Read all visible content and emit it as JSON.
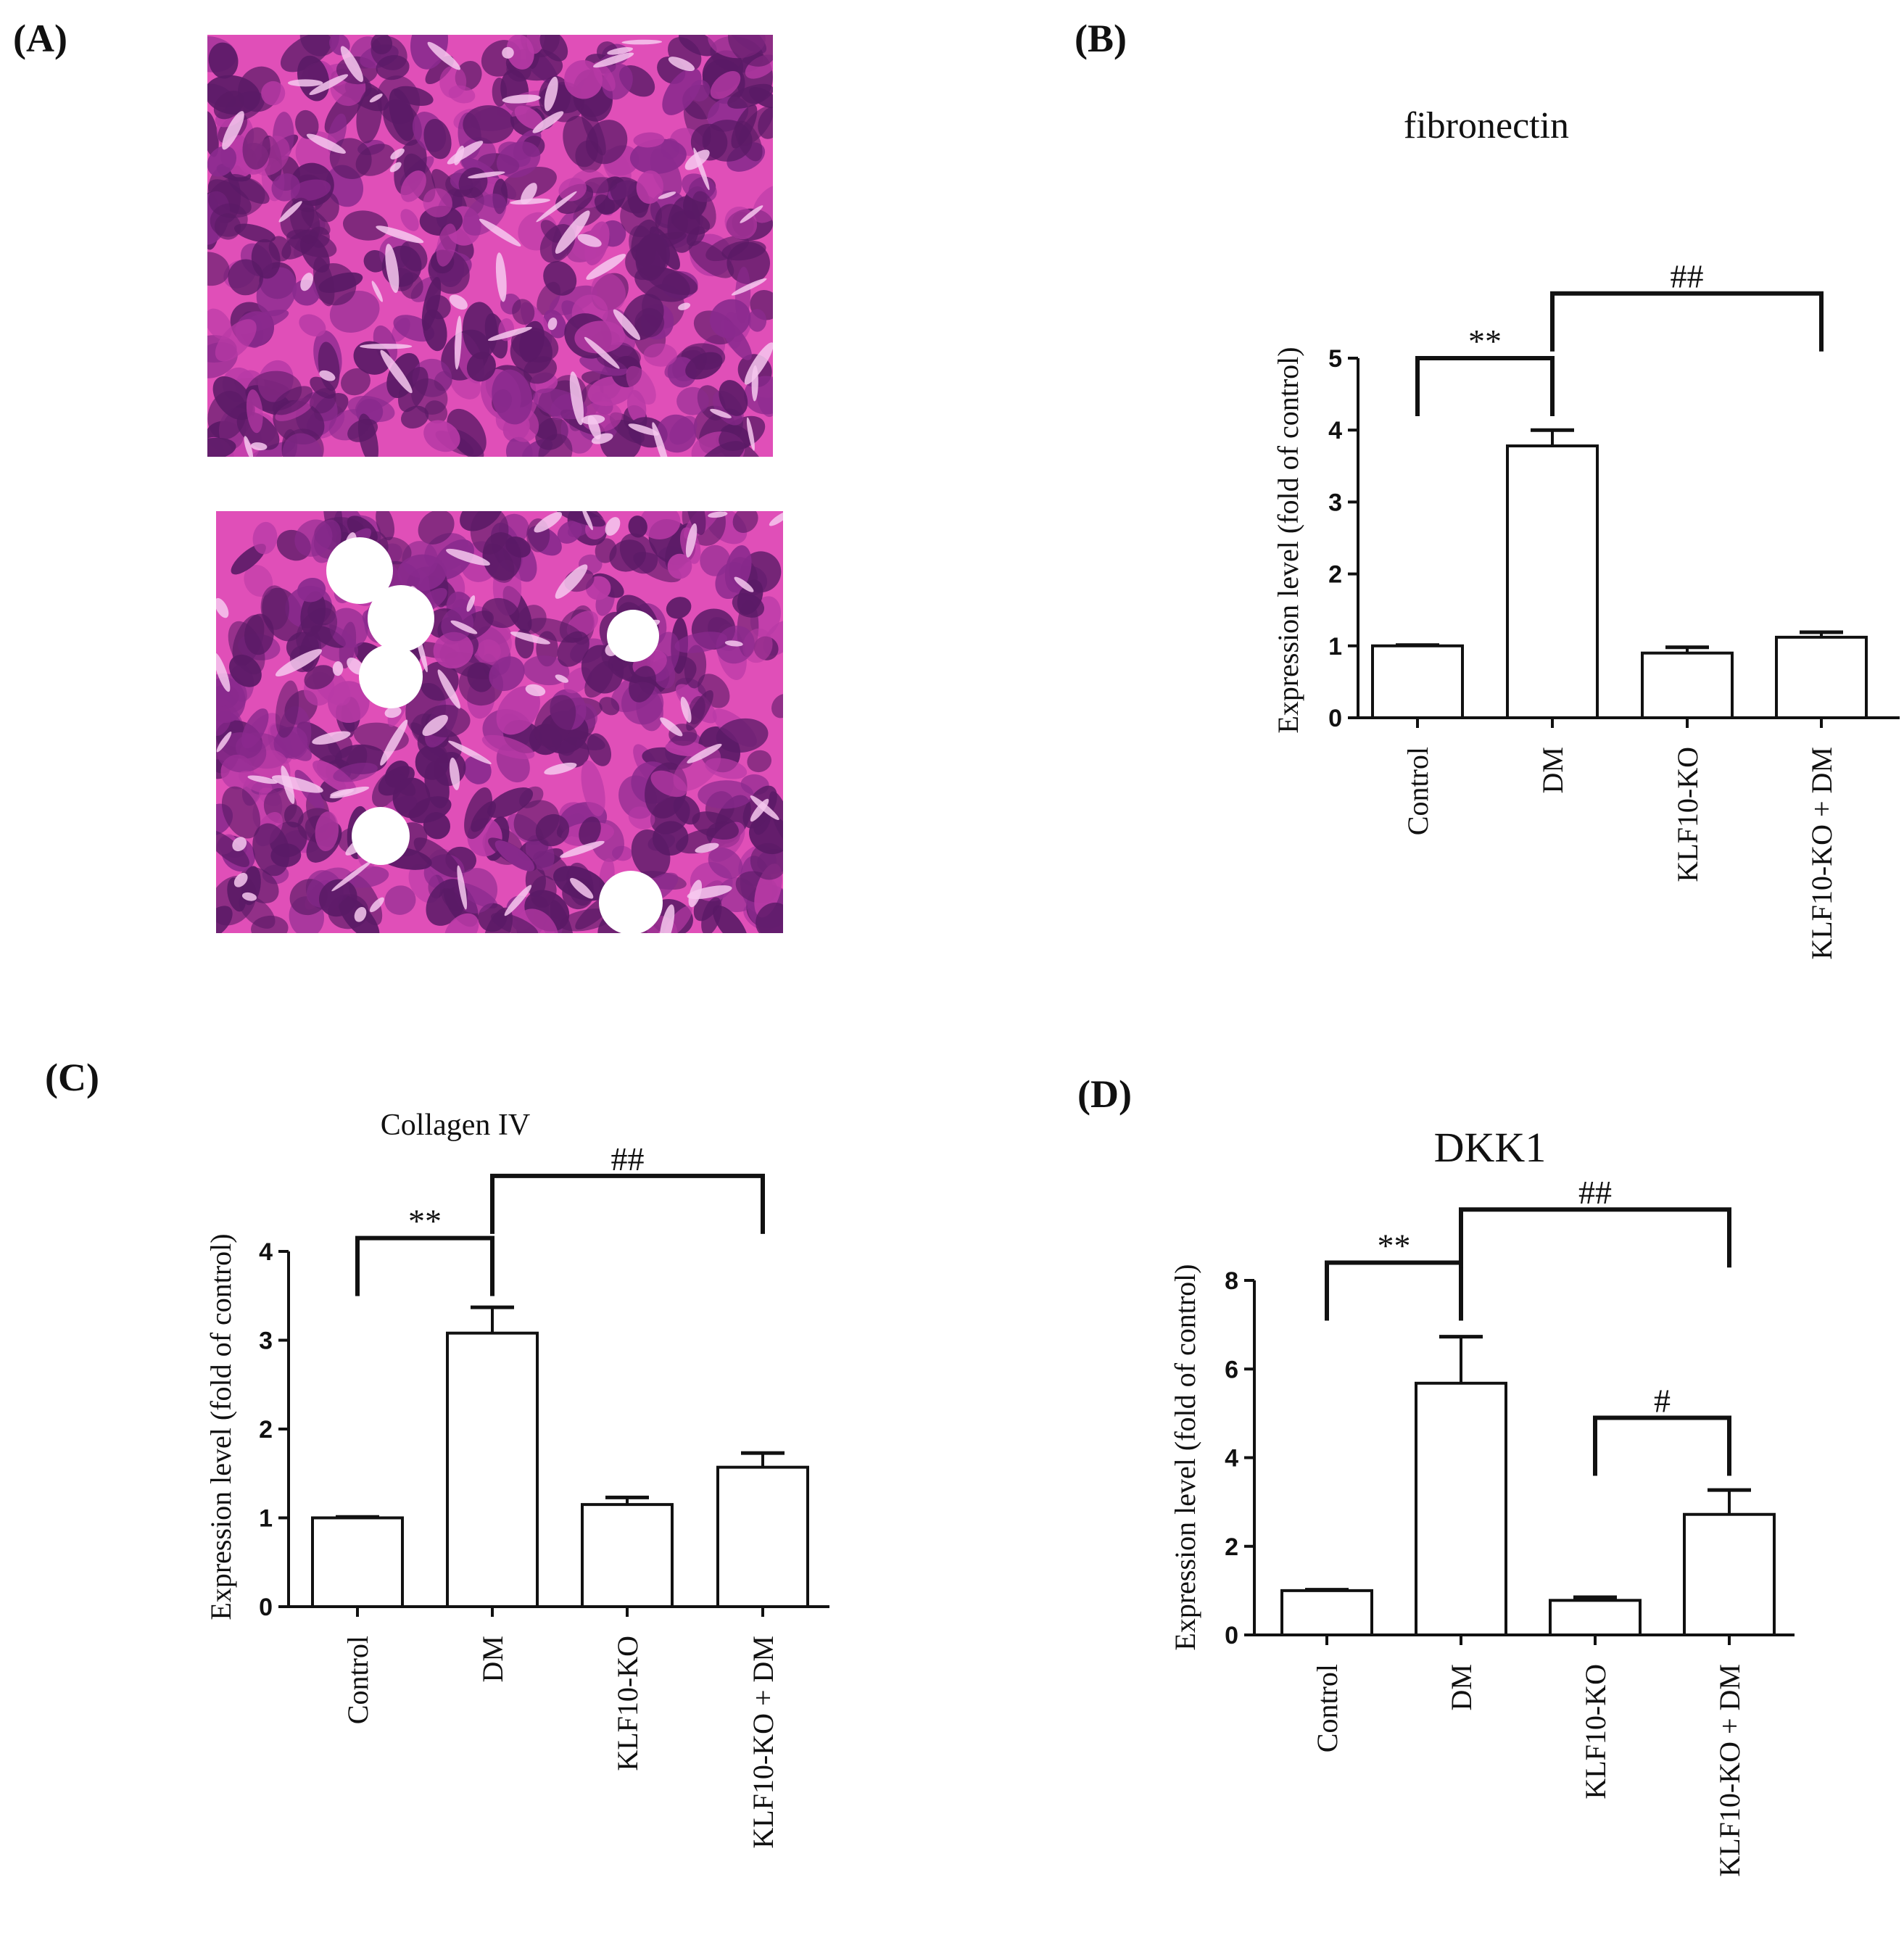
{
  "panel_labels": {
    "a": "(A)",
    "b": "(B)",
    "c": "(C)",
    "d": "(D)"
  },
  "micrographs": [
    {
      "name": "he-stained-kidney-section-top"
    },
    {
      "name": "he-stained-kidney-section-bottom"
    }
  ],
  "colors": {
    "stain_pink": "#e04fb8",
    "stain_purple": "#5a1a66",
    "bar_fill": "#ffffff",
    "ink": "#111111"
  },
  "chart_data": [
    {
      "id": "b",
      "type": "bar",
      "title": "fibronectin",
      "xlabel": "",
      "ylabel": "Expression level  (fold of control)",
      "categories": [
        "Control",
        "DM",
        "KLF10-KO",
        "KLF10-KO + DM"
      ],
      "values": [
        1.0,
        3.78,
        0.9,
        1.12
      ],
      "errors": [
        0.01,
        0.22,
        0.08,
        0.07
      ],
      "ylim": [
        0,
        5
      ],
      "yticks": [
        "0",
        "1",
        "2",
        "3",
        "4",
        "5"
      ],
      "grid": false,
      "annotations": [
        {
          "text": "**",
          "from": 0,
          "to": 1,
          "level": 5.0
        },
        {
          "text": "##",
          "from": 1,
          "to": 3,
          "level": 5.9
        }
      ]
    },
    {
      "id": "c",
      "type": "bar",
      "title": "Collagen IV",
      "xlabel": "",
      "ylabel": "Expression level  (fold of control)",
      "categories": [
        "Control",
        "DM",
        "KLF10-KO",
        "KLF10-KO + DM"
      ],
      "values": [
        1.0,
        3.08,
        1.15,
        1.57
      ],
      "errors": [
        0.01,
        0.29,
        0.08,
        0.16
      ],
      "ylim": [
        0,
        4
      ],
      "yticks": [
        "0",
        "1",
        "2",
        "3",
        "4"
      ],
      "grid": false,
      "annotations": [
        {
          "text": "**",
          "from": 0,
          "to": 1,
          "level": 4.15
        },
        {
          "text": "##",
          "from": 1,
          "to": 3,
          "level": 4.85
        }
      ]
    },
    {
      "id": "d",
      "type": "bar",
      "title": "DKK1",
      "xlabel": "",
      "ylabel": "Expression level  (fold of control)",
      "categories": [
        "Control",
        "DM",
        "KLF10-KO",
        "KLF10-KO + DM"
      ],
      "values": [
        1.0,
        5.68,
        0.78,
        2.72
      ],
      "errors": [
        0.02,
        1.05,
        0.07,
        0.55
      ],
      "ylim": [
        0,
        8
      ],
      "yticks": [
        "0",
        "2",
        "4",
        "6",
        "8"
      ],
      "grid": false,
      "annotations": [
        {
          "text": "**",
          "from": 0,
          "to": 1,
          "level": 8.4
        },
        {
          "text": "##",
          "from": 1,
          "to": 3,
          "level": 9.6
        },
        {
          "text": "#",
          "from": 2,
          "to": 3,
          "level": 4.9
        }
      ]
    }
  ]
}
